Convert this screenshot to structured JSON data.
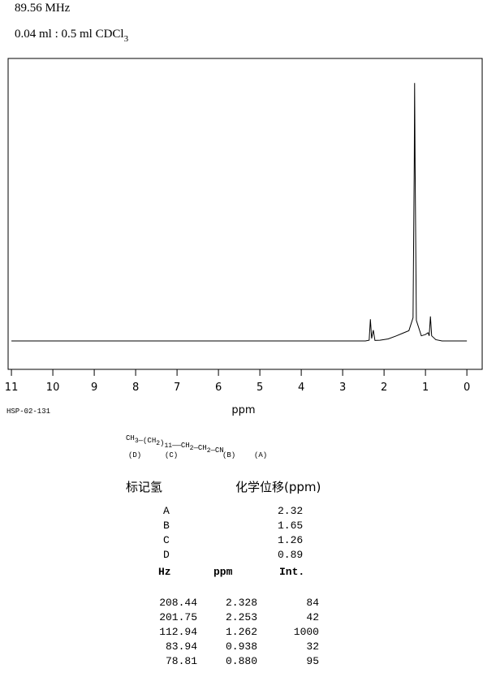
{
  "header": {
    "frequency": "89.56 MHz",
    "sample": "0.04 ml : 0.5 ml CDCl",
    "sample_subscript": "3"
  },
  "chart_data": {
    "type": "line",
    "xlabel": "ppm",
    "color": "#000000",
    "xlim": [
      11.08,
      -0.37
    ],
    "ylim": [
      -110,
      1095
    ],
    "xticks": [
      11,
      10,
      9,
      8,
      7,
      6,
      5,
      4,
      3,
      2,
      1,
      0
    ],
    "x": [
      11,
      2.45,
      2.36,
      2.33,
      2.3,
      2.26,
      2.22,
      2.1,
      1.9,
      1.7,
      1.55,
      1.4,
      1.3,
      1.27,
      1.262,
      1.25,
      1.22,
      1.1,
      1.0,
      0.938,
      0.91,
      0.88,
      0.85,
      0.75,
      0.6,
      0
    ],
    "values": [
      0,
      0,
      3,
      84,
      10,
      42,
      2,
      3,
      8,
      20,
      30,
      40,
      90,
      700,
      1000,
      680,
      80,
      20,
      25,
      32,
      20,
      95,
      20,
      5,
      0,
      0
    ]
  },
  "code": "HSP-02-131",
  "structure": {
    "segments": [
      {
        "t": "CH",
        "s": "3"
      },
      {
        "t": "—(CH",
        "s": "2"
      },
      {
        "t": ")",
        "s": "11"
      },
      {
        "t": "——CH",
        "s": "2"
      },
      {
        "t": "—CH",
        "s": "2"
      },
      {
        "t": "—CN"
      }
    ],
    "labels": [
      "(D)",
      "(C)",
      "(B)",
      "(A)"
    ]
  },
  "assignment": {
    "headers": [
      "标记氢",
      "化学位移(ppm)"
    ],
    "rows": [
      [
        "A",
        "2.32"
      ],
      [
        "B",
        "1.65"
      ],
      [
        "C",
        "1.26"
      ],
      [
        "D",
        "0.89"
      ]
    ]
  },
  "peaks": {
    "headers": [
      "Hz",
      "ppm",
      "Int."
    ],
    "rows": [
      [
        "208.44",
        "2.328",
        "84"
      ],
      [
        "201.75",
        "2.253",
        "42"
      ],
      [
        "112.94",
        "1.262",
        "1000"
      ],
      [
        "83.94",
        "0.938",
        "32"
      ],
      [
        "78.81",
        "0.880",
        "95"
      ]
    ]
  }
}
